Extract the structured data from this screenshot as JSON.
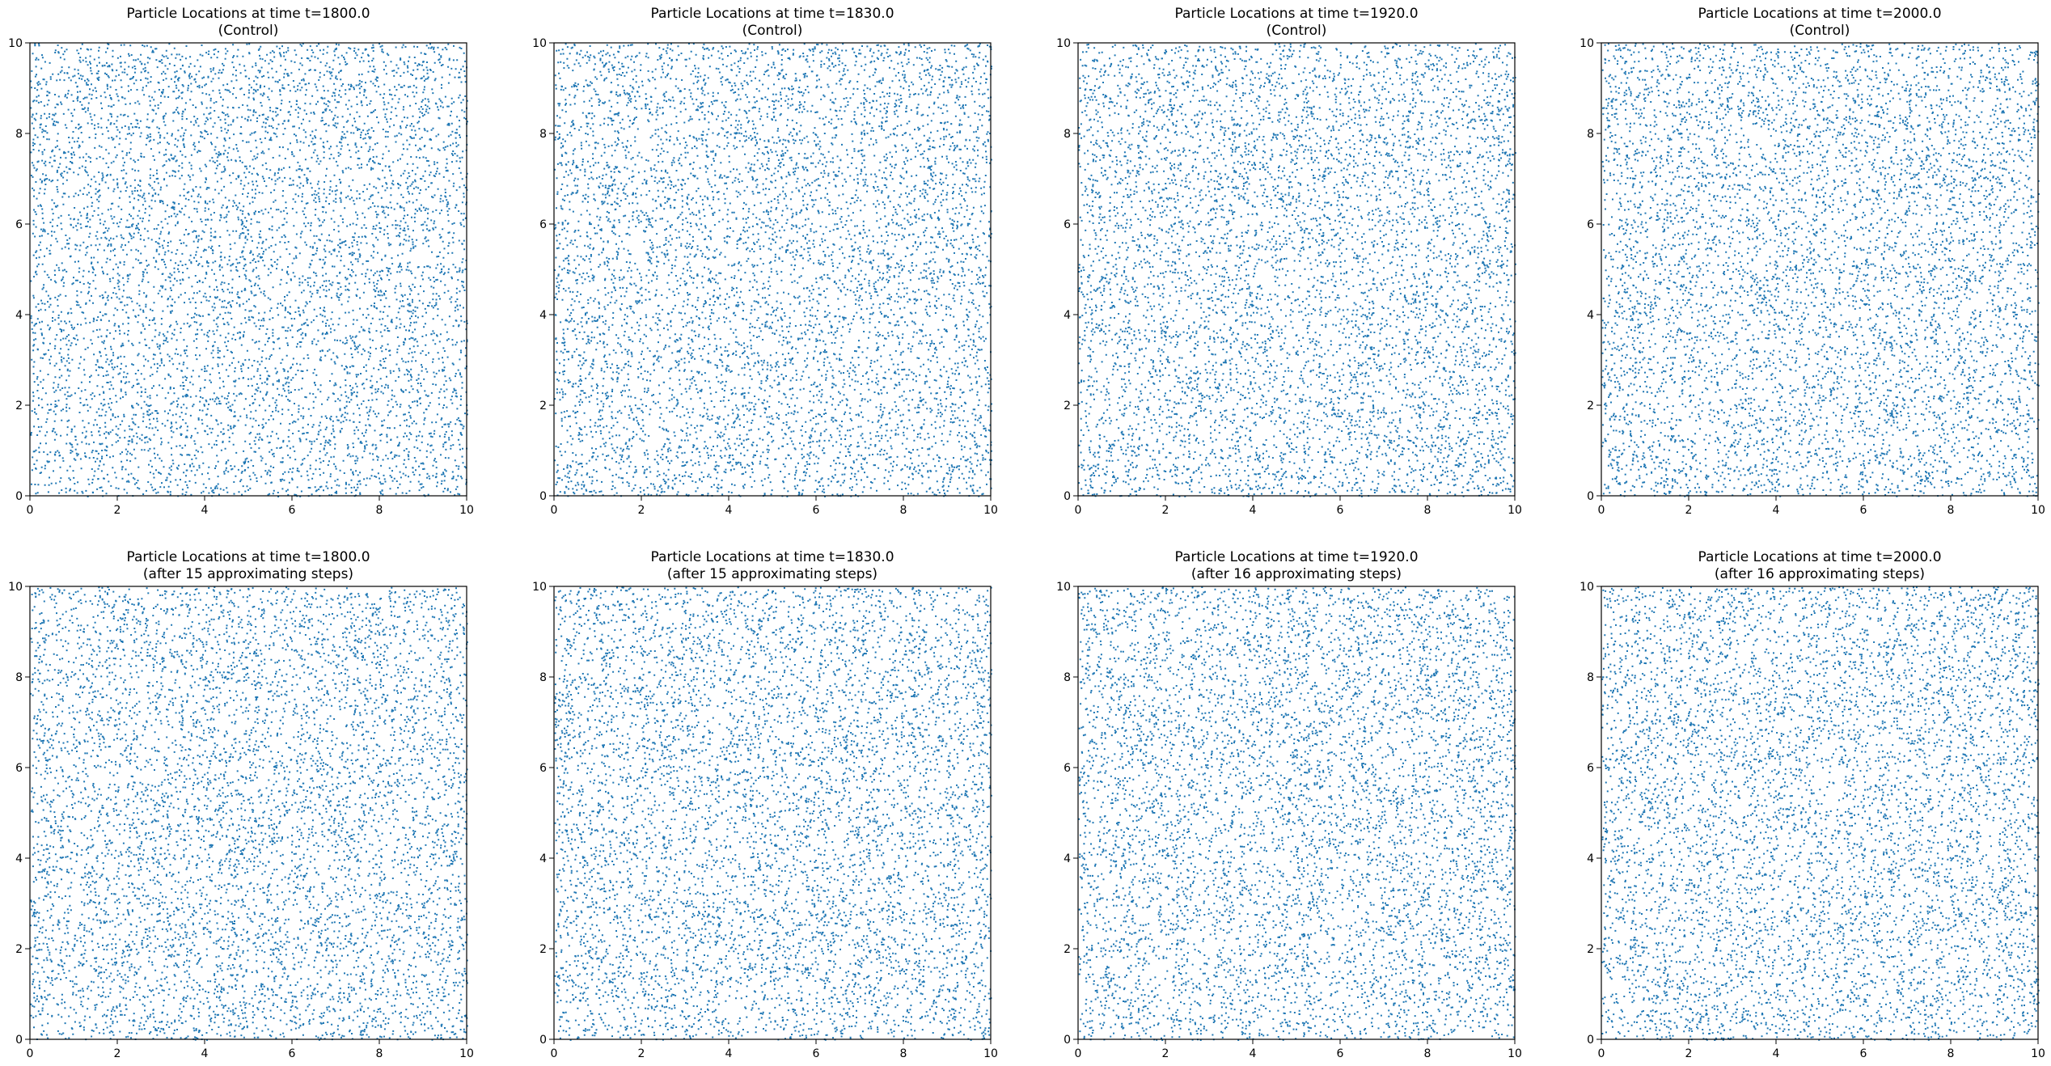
{
  "figure": {
    "background": "#ffffff",
    "marker_color": "#1f77b4"
  },
  "chart_data": [
    {
      "type": "scatter",
      "title": "Particle Locations at time t=1800.0",
      "subtitle": "(Control)",
      "xlim": [
        0,
        10
      ],
      "ylim": [
        0,
        10
      ],
      "xticks": [
        "0",
        "2",
        "4",
        "6",
        "8",
        "10"
      ],
      "yticks": [
        "0",
        "2",
        "4",
        "6",
        "8",
        "10"
      ],
      "grid": false,
      "series": [
        {
          "particle_count": 6500,
          "seed": 1800,
          "color": "#1f77b4"
        }
      ]
    },
    {
      "type": "scatter",
      "title": "Particle Locations at time t=1830.0",
      "subtitle": "(Control)",
      "xlim": [
        0,
        10
      ],
      "ylim": [
        0,
        10
      ],
      "xticks": [
        "0",
        "2",
        "4",
        "6",
        "8",
        "10"
      ],
      "yticks": [
        "0",
        "2",
        "4",
        "6",
        "8",
        "10"
      ],
      "grid": false,
      "series": [
        {
          "particle_count": 6500,
          "seed": 1830,
          "color": "#1f77b4"
        }
      ]
    },
    {
      "type": "scatter",
      "title": "Particle Locations at time t=1920.0",
      "subtitle": "(Control)",
      "xlim": [
        0,
        10
      ],
      "ylim": [
        0,
        10
      ],
      "xticks": [
        "0",
        "2",
        "4",
        "6",
        "8",
        "10"
      ],
      "yticks": [
        "0",
        "2",
        "4",
        "6",
        "8",
        "10"
      ],
      "grid": false,
      "series": [
        {
          "particle_count": 6500,
          "seed": 1920,
          "color": "#1f77b4"
        }
      ]
    },
    {
      "type": "scatter",
      "title": "Particle Locations at time t=2000.0",
      "subtitle": "(Control)",
      "xlim": [
        0,
        10
      ],
      "ylim": [
        0,
        10
      ],
      "xticks": [
        "0",
        "2",
        "4",
        "6",
        "8",
        "10"
      ],
      "yticks": [
        "0",
        "2",
        "4",
        "6",
        "8",
        "10"
      ],
      "grid": false,
      "series": [
        {
          "particle_count": 6500,
          "seed": 2000,
          "color": "#1f77b4"
        }
      ]
    },
    {
      "type": "scatter",
      "title": "Particle Locations at time t=1800.0",
      "subtitle": "(after 15 approximating steps)",
      "xlim": [
        0,
        10
      ],
      "ylim": [
        0,
        10
      ],
      "xticks": [
        "0",
        "2",
        "4",
        "6",
        "8",
        "10"
      ],
      "yticks": [
        "0",
        "2",
        "4",
        "6",
        "8",
        "10"
      ],
      "grid": false,
      "series": [
        {
          "particle_count": 6500,
          "seed": 18001,
          "color": "#1f77b4"
        }
      ]
    },
    {
      "type": "scatter",
      "title": "Particle Locations at time t=1830.0",
      "subtitle": "(after 15 approximating steps)",
      "xlim": [
        0,
        10
      ],
      "ylim": [
        0,
        10
      ],
      "xticks": [
        "0",
        "2",
        "4",
        "6",
        "8",
        "10"
      ],
      "yticks": [
        "0",
        "2",
        "4",
        "6",
        "8",
        "10"
      ],
      "grid": false,
      "series": [
        {
          "particle_count": 6500,
          "seed": 18301,
          "color": "#1f77b4"
        }
      ]
    },
    {
      "type": "scatter",
      "title": "Particle Locations at time t=1920.0",
      "subtitle": "(after 16 approximating steps)",
      "xlim": [
        0,
        10
      ],
      "ylim": [
        0,
        10
      ],
      "xticks": [
        "0",
        "2",
        "4",
        "6",
        "8",
        "10"
      ],
      "yticks": [
        "0",
        "2",
        "4",
        "6",
        "8",
        "10"
      ],
      "grid": false,
      "series": [
        {
          "particle_count": 6500,
          "seed": 19201,
          "color": "#1f77b4"
        }
      ]
    },
    {
      "type": "scatter",
      "title": "Particle Locations at time t=2000.0",
      "subtitle": "(after 16 approximating steps)",
      "xlim": [
        0,
        10
      ],
      "ylim": [
        0,
        10
      ],
      "xticks": [
        "0",
        "2",
        "4",
        "6",
        "8",
        "10"
      ],
      "yticks": [
        "0",
        "2",
        "4",
        "6",
        "8",
        "10"
      ],
      "grid": false,
      "series": [
        {
          "particle_count": 6500,
          "seed": 20001,
          "color": "#1f77b4"
        }
      ]
    }
  ]
}
